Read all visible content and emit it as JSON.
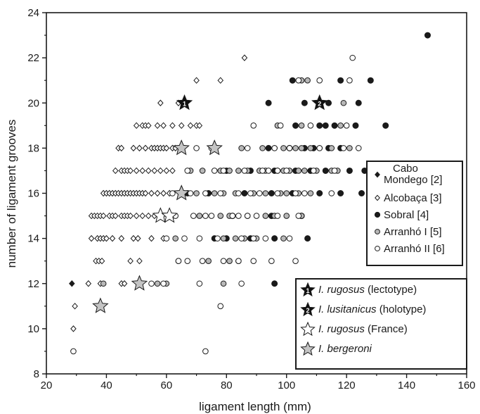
{
  "chart_data": {
    "type": "scatter",
    "xlabel": "ligament length (mm)",
    "ylabel": "number of ligament grooves",
    "xlim": [
      20,
      160
    ],
    "ylim": [
      8,
      24
    ],
    "xticks": [
      20,
      40,
      60,
      80,
      100,
      120,
      140,
      160
    ],
    "yticks": [
      8,
      10,
      12,
      14,
      16,
      18,
      20,
      22,
      24
    ],
    "grid": false,
    "legend_position": "right",
    "series": [
      {
        "name": "Cabo Mondego [2]",
        "marker": "diamond-filled",
        "color": "#1a1a1a",
        "points": [
          [
            28.5,
            12
          ]
        ]
      },
      {
        "name": "Alcobaça [3]",
        "marker": "diamond-open",
        "color": "#1a1a1a",
        "points": [
          [
            29.5,
            11
          ],
          [
            29,
            10
          ],
          [
            34,
            12
          ],
          [
            38,
            12
          ],
          [
            36.5,
            13
          ],
          [
            37.5,
            13
          ],
          [
            38.5,
            13
          ],
          [
            35,
            14
          ],
          [
            37,
            14
          ],
          [
            38,
            14
          ],
          [
            39,
            14
          ],
          [
            40,
            14
          ],
          [
            42,
            14
          ],
          [
            45,
            14
          ],
          [
            49,
            14
          ],
          [
            50.5,
            14
          ],
          [
            55,
            14
          ],
          [
            59,
            14
          ],
          [
            35,
            15
          ],
          [
            36,
            15
          ],
          [
            37,
            15
          ],
          [
            38,
            15
          ],
          [
            39,
            15
          ],
          [
            41,
            15
          ],
          [
            42,
            15
          ],
          [
            43,
            15
          ],
          [
            45,
            15
          ],
          [
            46,
            15
          ],
          [
            47,
            15
          ],
          [
            48,
            15
          ],
          [
            50,
            15
          ],
          [
            52,
            15
          ],
          [
            54,
            15
          ],
          [
            56,
            15
          ],
          [
            39,
            16
          ],
          [
            40,
            16
          ],
          [
            41,
            16
          ],
          [
            42,
            16
          ],
          [
            43,
            16
          ],
          [
            44,
            16
          ],
          [
            45,
            16
          ],
          [
            46,
            16
          ],
          [
            47,
            16
          ],
          [
            48,
            16
          ],
          [
            49,
            16
          ],
          [
            50,
            16
          ],
          [
            51,
            16
          ],
          [
            52,
            16
          ],
          [
            53,
            16
          ],
          [
            55,
            16
          ],
          [
            57,
            16
          ],
          [
            59,
            16
          ],
          [
            61,
            16
          ],
          [
            43,
            17
          ],
          [
            45,
            17
          ],
          [
            46,
            17
          ],
          [
            47,
            17
          ],
          [
            48,
            17
          ],
          [
            50,
            17
          ],
          [
            52,
            17
          ],
          [
            54,
            17
          ],
          [
            56,
            17
          ],
          [
            58,
            17
          ],
          [
            60,
            17
          ],
          [
            62,
            17
          ],
          [
            44,
            18
          ],
          [
            45,
            18
          ],
          [
            49,
            18
          ],
          [
            51,
            18
          ],
          [
            53,
            18
          ],
          [
            55,
            18
          ],
          [
            56,
            18
          ],
          [
            57,
            18
          ],
          [
            58,
            18
          ],
          [
            59,
            18
          ],
          [
            60,
            18
          ],
          [
            62,
            18
          ],
          [
            63,
            18
          ],
          [
            50,
            19
          ],
          [
            52,
            19
          ],
          [
            53,
            19
          ],
          [
            54,
            19
          ],
          [
            57,
            19
          ],
          [
            59,
            19
          ],
          [
            62,
            19
          ],
          [
            65,
            19
          ],
          [
            68,
            19
          ],
          [
            70,
            19
          ],
          [
            71,
            19
          ],
          [
            58,
            20
          ],
          [
            64,
            20
          ],
          [
            70,
            21
          ],
          [
            78,
            21
          ],
          [
            86,
            22
          ],
          [
            51,
            13
          ],
          [
            48,
            13
          ],
          [
            45,
            12
          ],
          [
            46,
            12
          ]
        ]
      },
      {
        "name": "Sobral [4]",
        "marker": "circle-filled",
        "color": "#1a1a1a",
        "points": [
          [
            147,
            23
          ],
          [
            102,
            21
          ],
          [
            118,
            21
          ],
          [
            128,
            21
          ],
          [
            94,
            20
          ],
          [
            106,
            20
          ],
          [
            114,
            20
          ],
          [
            124,
            20
          ],
          [
            103,
            19
          ],
          [
            111,
            19
          ],
          [
            113,
            19
          ],
          [
            116,
            19
          ],
          [
            123,
            19
          ],
          [
            133,
            19
          ],
          [
            94,
            18
          ],
          [
            101,
            18
          ],
          [
            106,
            18
          ],
          [
            109,
            18
          ],
          [
            114,
            18
          ],
          [
            118,
            18
          ],
          [
            80,
            17
          ],
          [
            88,
            17
          ],
          [
            96,
            17
          ],
          [
            103,
            17
          ],
          [
            108,
            17
          ],
          [
            113,
            17
          ],
          [
            121,
            17
          ],
          [
            126,
            17
          ],
          [
            74,
            16
          ],
          [
            86,
            16
          ],
          [
            95,
            16
          ],
          [
            102,
            16
          ],
          [
            111,
            16
          ],
          [
            118,
            16
          ],
          [
            125,
            16
          ],
          [
            82,
            15
          ],
          [
            95,
            15
          ],
          [
            105,
            15
          ],
          [
            88,
            14
          ],
          [
            96,
            14
          ],
          [
            107,
            14
          ],
          [
            76,
            14
          ],
          [
            96,
            12
          ],
          [
            67,
            16
          ],
          [
            80,
            14
          ]
        ]
      },
      {
        "name": "Arranhó I [5]",
        "marker": "circle-gray",
        "color": "#b8b8b8",
        "points": [
          [
            105,
            21
          ],
          [
            107,
            21
          ],
          [
            119,
            20
          ],
          [
            97,
            19
          ],
          [
            105,
            19
          ],
          [
            118,
            19
          ],
          [
            85,
            18
          ],
          [
            92,
            18
          ],
          [
            96,
            18
          ],
          [
            99,
            18
          ],
          [
            103,
            18
          ],
          [
            105,
            18
          ],
          [
            108,
            18
          ],
          [
            111,
            18
          ],
          [
            115,
            18
          ],
          [
            121,
            18
          ],
          [
            68,
            17
          ],
          [
            72,
            17
          ],
          [
            78,
            17
          ],
          [
            81,
            17
          ],
          [
            84,
            17
          ],
          [
            87,
            17
          ],
          [
            91,
            17
          ],
          [
            93,
            17
          ],
          [
            97,
            17
          ],
          [
            99,
            17
          ],
          [
            101,
            17
          ],
          [
            104,
            17
          ],
          [
            106,
            17
          ],
          [
            110,
            17
          ],
          [
            115,
            17
          ],
          [
            117,
            17
          ],
          [
            65,
            16
          ],
          [
            70,
            16
          ],
          [
            76,
            16
          ],
          [
            79,
            16
          ],
          [
            83,
            16
          ],
          [
            89,
            16
          ],
          [
            93,
            16
          ],
          [
            98,
            16
          ],
          [
            100,
            16
          ],
          [
            104,
            16
          ],
          [
            108,
            16
          ],
          [
            71,
            15
          ],
          [
            78,
            15
          ],
          [
            81,
            15
          ],
          [
            87,
            15
          ],
          [
            93,
            15
          ],
          [
            96,
            15
          ],
          [
            100,
            15
          ],
          [
            105,
            15
          ],
          [
            63,
            14
          ],
          [
            79,
            14
          ],
          [
            83,
            14
          ],
          [
            86,
            14
          ],
          [
            90,
            14
          ],
          [
            99,
            14
          ],
          [
            74,
            13
          ],
          [
            81,
            13
          ],
          [
            84,
            13
          ],
          [
            64,
            13
          ],
          [
            57,
            12
          ],
          [
            60,
            12
          ],
          [
            79,
            12
          ],
          [
            39,
            12
          ]
        ]
      },
      {
        "name": "Arranhó II [6]",
        "marker": "circle-open",
        "color": "#ffffff",
        "points": [
          [
            122,
            22
          ],
          [
            104,
            21
          ],
          [
            111,
            21
          ],
          [
            121,
            21
          ],
          [
            89,
            19
          ],
          [
            98,
            19
          ],
          [
            108,
            19
          ],
          [
            120,
            19
          ],
          [
            70,
            18
          ],
          [
            75,
            18
          ],
          [
            87,
            18
          ],
          [
            96,
            18
          ],
          [
            101,
            18
          ],
          [
            111,
            18
          ],
          [
            119,
            18
          ],
          [
            124,
            18
          ],
          [
            67,
            17
          ],
          [
            76,
            17
          ],
          [
            79,
            17
          ],
          [
            86,
            17
          ],
          [
            92,
            17
          ],
          [
            94,
            17
          ],
          [
            97,
            17
          ],
          [
            100,
            17
          ],
          [
            109,
            17
          ],
          [
            116,
            17
          ],
          [
            62,
            16
          ],
          [
            68,
            16
          ],
          [
            73,
            16
          ],
          [
            78,
            16
          ],
          [
            84,
            16
          ],
          [
            88,
            16
          ],
          [
            91,
            16
          ],
          [
            97,
            16
          ],
          [
            103,
            16
          ],
          [
            106,
            16
          ],
          [
            115,
            16
          ],
          [
            58,
            15
          ],
          [
            63,
            15
          ],
          [
            69,
            15
          ],
          [
            73,
            15
          ],
          [
            75,
            15
          ],
          [
            82,
            15
          ],
          [
            84,
            15
          ],
          [
            87,
            15
          ],
          [
            90,
            15
          ],
          [
            97,
            15
          ],
          [
            104,
            15
          ],
          [
            60,
            14
          ],
          [
            66,
            14
          ],
          [
            71,
            14
          ],
          [
            77,
            14
          ],
          [
            85,
            14
          ],
          [
            89,
            14
          ],
          [
            93,
            14
          ],
          [
            101,
            14
          ],
          [
            64,
            13
          ],
          [
            67,
            13
          ],
          [
            72,
            13
          ],
          [
            79,
            13
          ],
          [
            84,
            13
          ],
          [
            89,
            13
          ],
          [
            95,
            13
          ],
          [
            103,
            13
          ],
          [
            55,
            12
          ],
          [
            59,
            12
          ],
          [
            71,
            12
          ],
          [
            85,
            12
          ],
          [
            29,
            9
          ],
          [
            73,
            9
          ],
          [
            78,
            11
          ]
        ]
      }
    ],
    "specimens": [
      {
        "name": "I. rugosus (lectotype)",
        "marker": "star-black-1",
        "number": "1",
        "points": [
          [
            66,
            20
          ]
        ]
      },
      {
        "name": "I. lusitanicus (holotype)",
        "marker": "star-black-2",
        "number": "2",
        "points": [
          [
            111,
            20
          ]
        ]
      },
      {
        "name": "I. rugosus (France)",
        "marker": "star-open",
        "points": [
          [
            58,
            15
          ],
          [
            61,
            15
          ]
        ]
      },
      {
        "name": "I. bergeroni",
        "marker": "star-gray",
        "points": [
          [
            38,
            11
          ],
          [
            51,
            12
          ],
          [
            65,
            16
          ],
          [
            65,
            18
          ],
          [
            76,
            18
          ]
        ]
      }
    ]
  },
  "legend1": [
    {
      "label_lines": [
        "Cabo",
        "Mondego [2]"
      ],
      "marker": "diamond-filled"
    },
    {
      "label_lines": [
        "Alcobaça [3]"
      ],
      "marker": "diamond-open"
    },
    {
      "label_lines": [
        "Sobral [4]"
      ],
      "marker": "circle-filled"
    },
    {
      "label_lines": [
        "Arranhó I [5]"
      ],
      "marker": "circle-gray"
    },
    {
      "label_lines": [
        "Arranhó II [6]"
      ],
      "marker": "circle-open"
    }
  ],
  "legend2": [
    {
      "italic": "I. rugosus",
      "rest": " (lectotype)",
      "marker": "star-black",
      "number": "1"
    },
    {
      "italic": "I. lusitanicus",
      "rest": " (holotype)",
      "marker": "star-black",
      "number": "2"
    },
    {
      "italic": "I. rugosus",
      "rest": " (France)",
      "marker": "star-open"
    },
    {
      "italic": "I. bergeroni",
      "rest": "",
      "marker": "star-gray"
    }
  ]
}
